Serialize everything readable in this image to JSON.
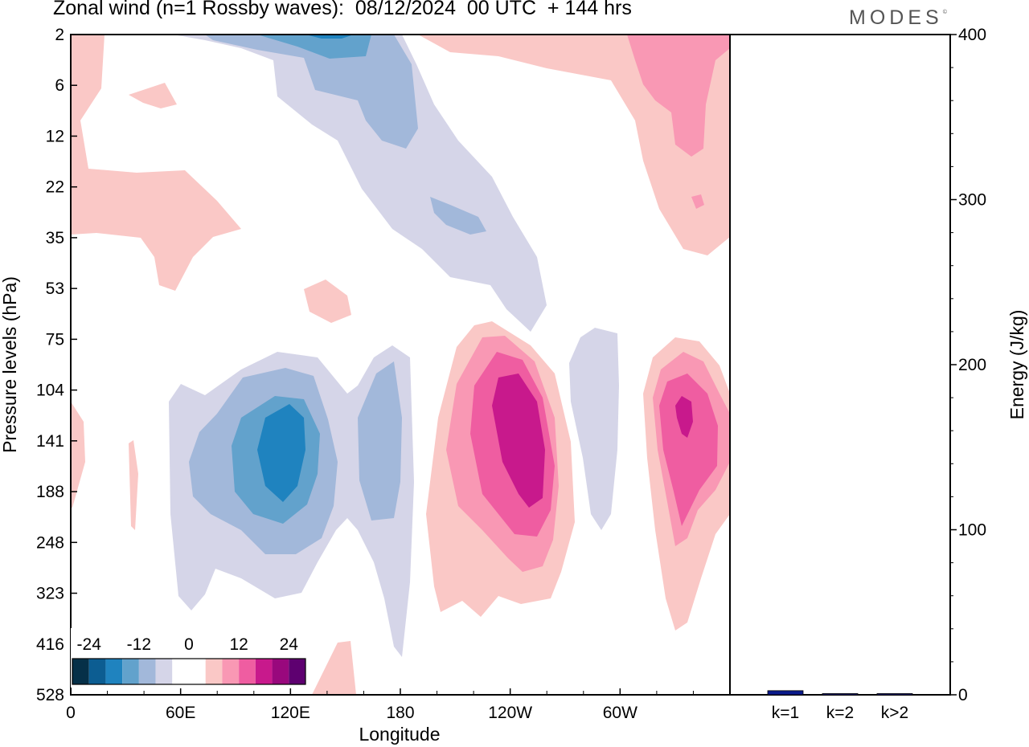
{
  "header": {
    "title": "Zonal wind (n=1 Rossby waves):  08/12/2024  00 UTC  + 144 hrs",
    "logo": "MODES",
    "logo_mark": "©"
  },
  "chart_data": [
    {
      "type": "heatmap",
      "title": "Zonal wind (n=1 Rossby waves):  08/12/2024  00 UTC  + 144 hrs",
      "xlabel": "Longitude",
      "ylabel": "Pressure levels (hPa)",
      "x_ticks": [
        "0",
        "60E",
        "120E",
        "180",
        "120W",
        "60W"
      ],
      "x_tick_degrees": [
        0,
        60,
        120,
        180,
        240,
        300
      ],
      "xlim": [
        0,
        360
      ],
      "y_ticks": [
        "2",
        "6",
        "12",
        "22",
        "35",
        "53",
        "75",
        "104",
        "141",
        "188",
        "248",
        "323",
        "416",
        "528"
      ],
      "y_axis": "pressure levels, top 2 hPa to bottom 528 hPa",
      "colorbar": {
        "tick_labels": [
          "-24",
          "-12",
          "0",
          "12",
          "24"
        ],
        "tick_values": [
          -24,
          -12,
          0,
          12,
          24
        ],
        "levels": [
          -28,
          -24,
          -20,
          -16,
          -12,
          -8,
          -4,
          4,
          8,
          12,
          16,
          20,
          24,
          28
        ],
        "colors": [
          "#063048",
          "#0c5d92",
          "#1f83bf",
          "#62a2cc",
          "#a2b8da",
          "#d5d5e8",
          "#ffffff",
          "#ffffff",
          "#fac8c6",
          "#f998b4",
          "#ef5da1",
          "#c8198c",
          "#99087d",
          "#5e0070"
        ]
      },
      "features": [
        {
          "name": "easterly core 120E",
          "lon": 120,
          "level": 141,
          "value": -20
        },
        {
          "name": "easterly lobe 175E",
          "lon": 175,
          "level": 141,
          "value": -12
        },
        {
          "name": "westerly core 125W",
          "lon": 235,
          "level": 141,
          "value": 20
        },
        {
          "name": "westerly core 25W",
          "lon": 335,
          "level": 120,
          "value": 22
        },
        {
          "name": "easterly upper band",
          "lon": 160,
          "level": 6,
          "value": -16
        },
        {
          "name": "westerly upper 20W",
          "lon": 340,
          "level": 6,
          "value": 12
        }
      ]
    },
    {
      "type": "bar",
      "categories": [
        "k=1",
        "k=2",
        "k>2"
      ],
      "values": [
        2.5,
        0.5,
        0.5
      ],
      "ylabel": "Energy (J/kg)",
      "ylim": [
        0,
        400
      ],
      "y_ticks": [
        0,
        100,
        200,
        300,
        400
      ],
      "bar_color": "#0a1a8c"
    }
  ]
}
